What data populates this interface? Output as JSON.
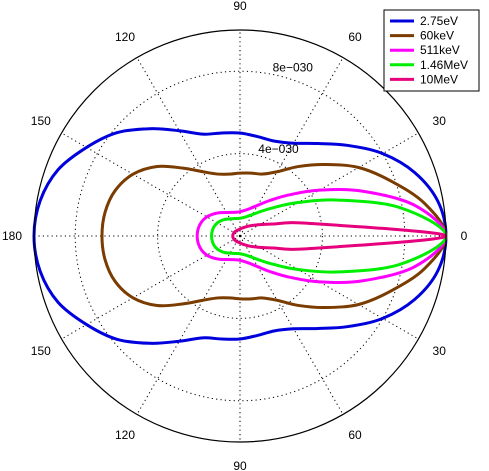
{
  "chart_data": {
    "type": "polar-line",
    "title": "",
    "radial_ticks": [
      {
        "value": 4e-30,
        "label": "4e−030"
      },
      {
        "value": 8e-30,
        "label": "8e−030"
      }
    ],
    "r_max": 1e-29,
    "angle_ticks": [
      {
        "angle": 0,
        "label": "0"
      },
      {
        "angle": 30,
        "label": "30"
      },
      {
        "angle": 60,
        "label": "60"
      },
      {
        "angle": 90,
        "label": "90"
      },
      {
        "angle": 120,
        "label": "120"
      },
      {
        "angle": 150,
        "label": "150"
      },
      {
        "angle": 180,
        "label": "180"
      },
      {
        "angle": 210,
        "label": "150"
      },
      {
        "angle": 240,
        "label": "120"
      },
      {
        "angle": 270,
        "label": "90"
      },
      {
        "angle": 300,
        "label": "60"
      },
      {
        "angle": 330,
        "label": "30"
      }
    ],
    "symmetric_about_zero": true,
    "theta_deg": [
      0,
      10,
      20,
      30,
      40,
      50,
      60,
      70,
      80,
      90,
      100,
      110,
      120,
      130,
      140,
      150,
      160,
      170,
      180
    ],
    "series": [
      {
        "name": "2.75eV",
        "color": "#0000dd",
        "r": [
          1e-29,
          9.75e-30,
          9.02e-30,
          8e-30,
          6.84e-30,
          5.86e-30,
          5.2e-30,
          4.9e-30,
          4.9e-30,
          5e-30,
          5.08e-30,
          5.26e-30,
          5.9e-30,
          6.8e-30,
          7.8e-30,
          8.6e-30,
          9.4e-30,
          9.85e-30,
          1e-29
        ]
      },
      {
        "name": "60keV",
        "color": "#7a3c00",
        "r": [
          1e-29,
          9.1e-30,
          7.8e-30,
          6.65e-30,
          5.4e-30,
          4.4e-30,
          3.6e-30,
          3.2e-30,
          3.1e-30,
          3.05e-30,
          3.05e-30,
          3.2e-30,
          3.6e-30,
          4.3e-30,
          5.25e-30,
          6e-30,
          6.45e-30,
          6.65e-30,
          6.7e-30
        ]
      },
      {
        "name": "511keV",
        "color": "#ff00ff",
        "r": [
          1e-29,
          8.6e-30,
          6.35e-30,
          4.45e-30,
          3.1e-30,
          2.25e-30,
          1.72e-30,
          1.42e-30,
          1.26e-30,
          1.18e-30,
          1.17e-30,
          1.22e-30,
          1.32e-30,
          1.48e-30,
          1.67e-30,
          1.86e-30,
          1.99e-30,
          2.06e-30,
          2.08e-30
        ]
      },
      {
        "name": "1.46MeV",
        "color": "#00ee00",
        "r": [
          1e-29,
          7.9e-30,
          5.1e-30,
          3.25e-30,
          2.15e-30,
          1.55e-30,
          1.2e-30,
          1.01e-30,
          9.1e-31,
          8.6e-31,
          8.6e-31,
          9e-31,
          9.6e-31,
          1.06e-30,
          1.17e-30,
          1.27e-30,
          1.34e-30,
          1.37e-30,
          1.38e-30
        ]
      },
      {
        "name": "10MeV",
        "color": "#e6007e",
        "r": [
          1e-29,
          3.5e-30,
          1.7e-30,
          1.1e-30,
          8e-31,
          6.2e-31,
          5e-31,
          4.3e-31,
          3.7e-31,
          3.4e-31,
          3.2e-31,
          3.1e-31,
          3.1e-31,
          3.1e-31,
          3.2e-31,
          3.3e-31,
          3.4e-31,
          3.5e-31,
          3.5e-31
        ]
      }
    ],
    "grid": true,
    "legend_position": "top-right"
  }
}
